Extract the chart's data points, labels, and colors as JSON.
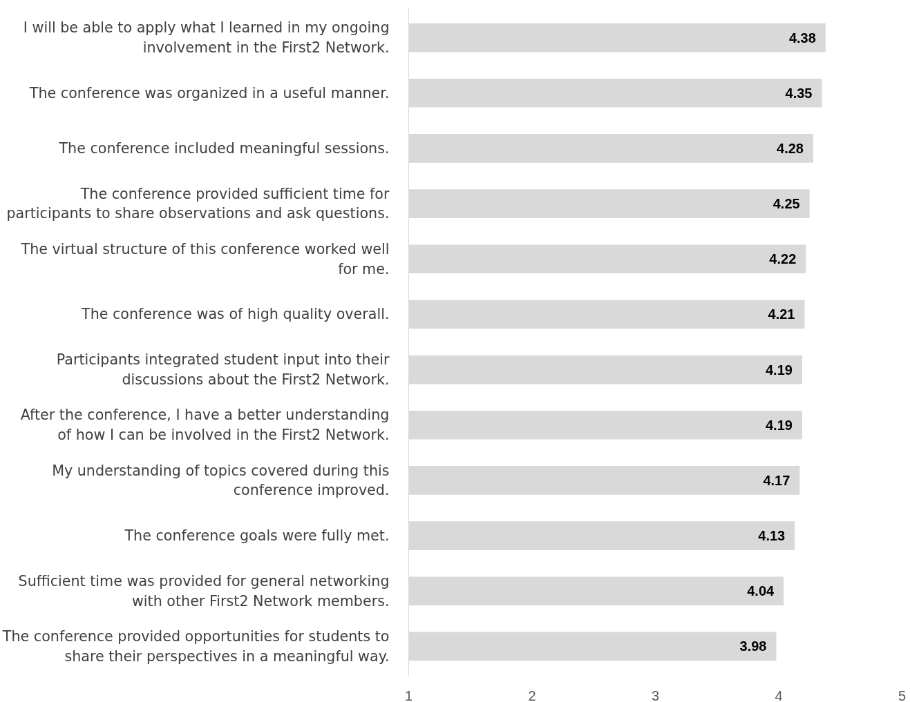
{
  "chart_data": {
    "type": "bar",
    "orientation": "horizontal",
    "categories": [
      "I will be able to apply what I learned in my ongoing involvement in the First2 Network.",
      "The conference was organized in a useful manner.",
      "The conference included meaningful sessions.",
      "The conference provided sufficient time for participants to share observations and ask questions.",
      "The virtual structure of this conference worked well for me.",
      "The conference was of high quality overall.",
      "Participants integrated student input into their discussions about the First2 Network.",
      "After the conference, I have a better understanding of how I can be involved in the First2 Network.",
      "My understanding of topics covered during this conference improved.",
      "The conference goals were fully met.",
      "Sufficient time was provided for general networking with other First2 Network members.",
      "The conference provided opportunities for students to share their perspectives in a meaningful way."
    ],
    "values": [
      4.38,
      4.35,
      4.28,
      4.25,
      4.22,
      4.21,
      4.19,
      4.19,
      4.17,
      4.13,
      4.04,
      3.98
    ],
    "color": "#d9d9d9",
    "xlim": [
      1,
      5
    ],
    "xticks": [
      1,
      2,
      3,
      4,
      5
    ],
    "data_labels": true,
    "grid": false
  }
}
